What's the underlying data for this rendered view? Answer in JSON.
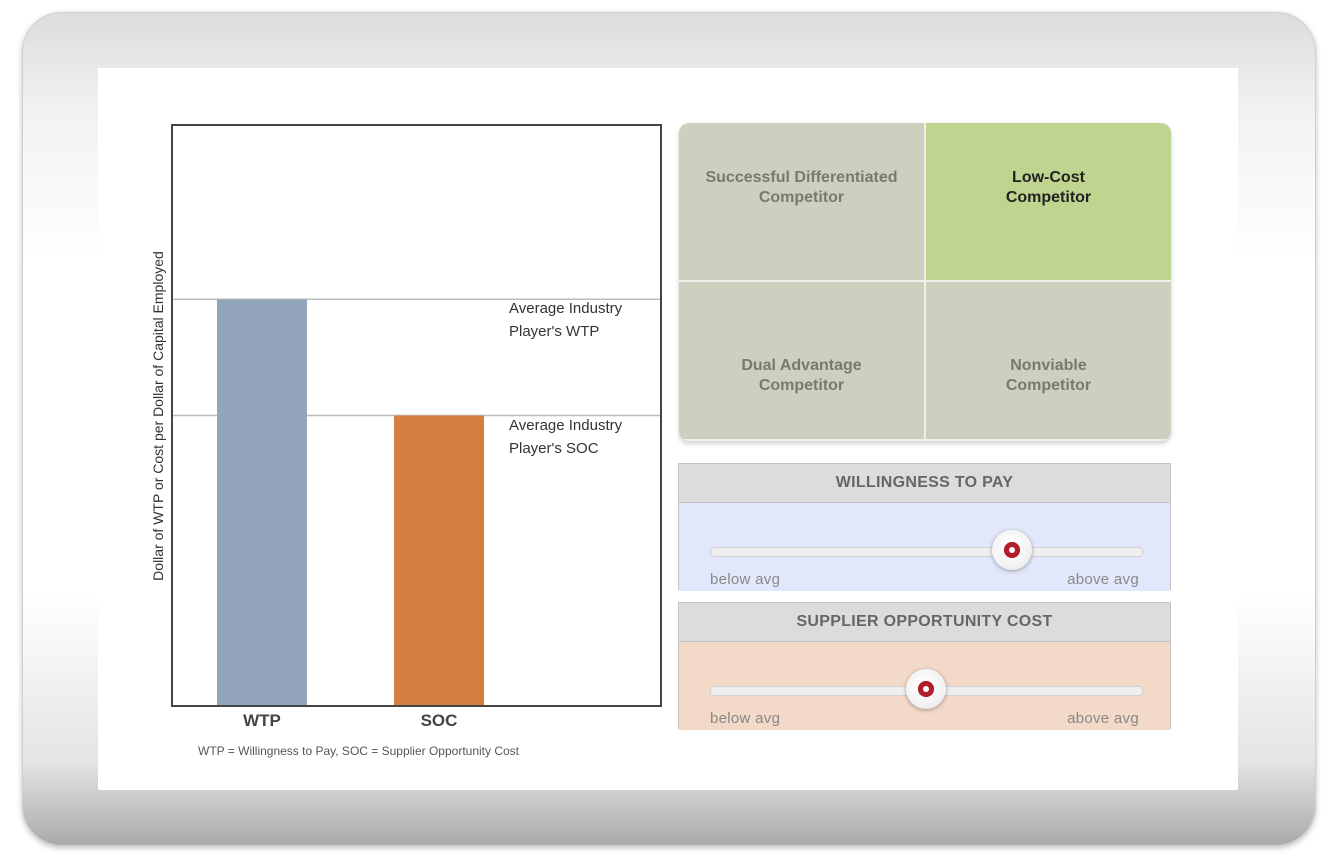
{
  "chart_data": {
    "type": "bar",
    "categories": [
      "WTP",
      "SOC"
    ],
    "values": [
      0.7,
      0.5
    ],
    "ylim": [
      0,
      1
    ],
    "ylabel": "Dollar of WTP or Cost per Dollar of Capital Employed",
    "colors": [
      "#93a5bb",
      "#d47f3f"
    ],
    "reference_lines": [
      {
        "value": 0.7,
        "label_line1": "Average Industry",
        "label_line2": "Player's WTP"
      },
      {
        "value": 0.5,
        "label_line1": "Average Industry",
        "label_line2": "Player's SOC"
      }
    ],
    "footnote": "WTP = Willingness to Pay, SOC = Supplier Opportunity Cost"
  },
  "matrix": {
    "top_left": {
      "line1": "Successful Differentiated",
      "line2": "Competitor"
    },
    "top_right": {
      "line1": "Low-Cost",
      "line2": "Competitor"
    },
    "bottom_left": {
      "line1": "Dual Advantage",
      "line2": "Competitor"
    },
    "bottom_right": {
      "line1": "Nonviable",
      "line2": "Competitor"
    },
    "active_cell": "top_right",
    "active_color": "#bfd48f",
    "cell_color": "#cdcfbf"
  },
  "sliders": {
    "wtp": {
      "title": "WILLINGNESS TO PAY",
      "min_label": "below avg",
      "max_label": "above avg",
      "value": 0.7,
      "body_color": "#e2e8fb"
    },
    "soc": {
      "title": "SUPPLIER OPPORTUNITY COST",
      "min_label": "below avg",
      "max_label": "above avg",
      "value": 0.5,
      "body_color": "#f3d9c8"
    }
  }
}
